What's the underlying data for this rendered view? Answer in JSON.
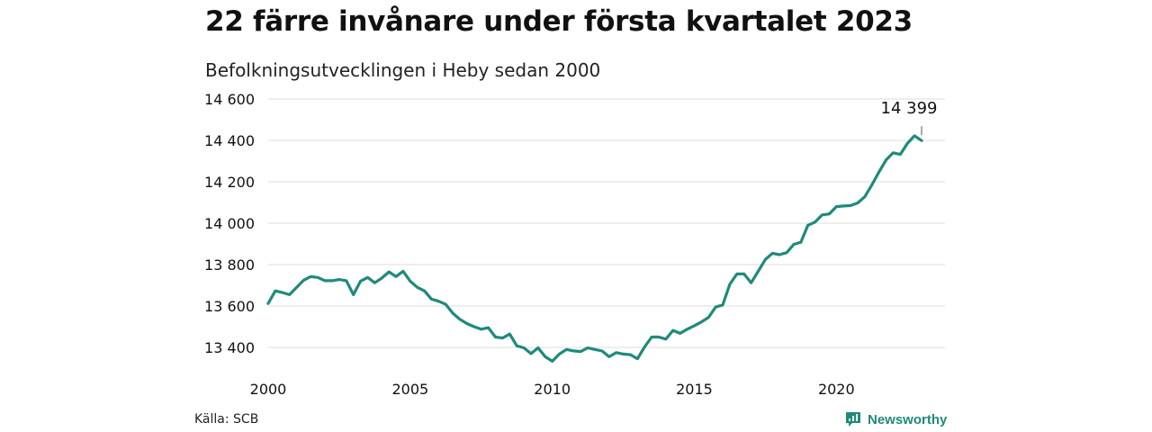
{
  "title": "22 färre invånare under första kvartalet 2023",
  "subtitle": "Befolkningsutvecklingen i Heby sedan 2000",
  "source": "Källa: SCB",
  "brand": "Newsworthy",
  "colors": {
    "line": "#1f8a7a",
    "grid": "#dddddd",
    "text": "#111111"
  },
  "chart_data": {
    "type": "line",
    "xlim": [
      2000,
      2023.25
    ],
    "ylim": [
      13300,
      14600
    ],
    "x_ticks": [
      2000,
      2005,
      2010,
      2015,
      2020
    ],
    "x_tick_labels": [
      "2000",
      "2005",
      "2010",
      "2015",
      "2020"
    ],
    "y_ticks": [
      13400,
      13600,
      13800,
      14000,
      14200,
      14400,
      14600
    ],
    "y_tick_labels": [
      "13 400",
      "13 600",
      "13 800",
      "14 000",
      "14 200",
      "14 400",
      "14 600"
    ],
    "grid": "horizontal",
    "annotation": {
      "x": 2023.0,
      "y": 14399,
      "label": "14 399"
    },
    "series": [
      {
        "x": [
          2000.0,
          2000.25,
          2000.5,
          2000.75,
          2001.0,
          2001.25,
          2001.5,
          2001.75,
          2002.0,
          2002.25,
          2002.5,
          2002.75,
          2003.0,
          2003.25,
          2003.5,
          2003.75,
          2004.0,
          2004.25,
          2004.5,
          2004.75,
          2005.0,
          2005.25,
          2005.5,
          2005.75,
          2006.0,
          2006.25,
          2006.5,
          2006.75,
          2007.0,
          2007.25,
          2007.5,
          2007.75,
          2008.0,
          2008.25,
          2008.5,
          2008.75,
          2009.0,
          2009.25,
          2009.5,
          2009.75,
          2010.0,
          2010.25,
          2010.5,
          2010.75,
          2011.0,
          2011.25,
          2011.5,
          2011.75,
          2012.0,
          2012.25,
          2012.5,
          2012.75,
          2013.0,
          2013.25,
          2013.5,
          2013.75,
          2014.0,
          2014.25,
          2014.5,
          2014.75,
          2015.0,
          2015.25,
          2015.5,
          2015.75,
          2016.0,
          2016.25,
          2016.5,
          2016.75,
          2017.0,
          2017.25,
          2017.5,
          2017.75,
          2018.0,
          2018.25,
          2018.5,
          2018.75,
          2019.0,
          2019.25,
          2019.5,
          2019.75,
          2020.0,
          2020.25,
          2020.5,
          2020.75,
          2021.0,
          2021.25,
          2021.5,
          2021.75,
          2022.0,
          2022.25,
          2022.5,
          2022.75,
          2023.0
        ],
        "values": [
          13612,
          13673,
          13665,
          13655,
          13690,
          13725,
          13742,
          13738,
          13722,
          13722,
          13728,
          13722,
          13655,
          13720,
          13738,
          13712,
          13735,
          13765,
          13742,
          13768,
          13720,
          13690,
          13673,
          13633,
          13623,
          13608,
          13565,
          13535,
          13515,
          13500,
          13488,
          13495,
          13450,
          13445,
          13465,
          13408,
          13398,
          13370,
          13398,
          13355,
          13333,
          13368,
          13390,
          13383,
          13380,
          13398,
          13390,
          13383,
          13355,
          13375,
          13368,
          13365,
          13345,
          13402,
          13450,
          13450,
          13440,
          13482,
          13468,
          13488,
          13505,
          13523,
          13545,
          13595,
          13605,
          13705,
          13755,
          13755,
          13712,
          13768,
          13825,
          13855,
          13848,
          13858,
          13898,
          13908,
          13990,
          14005,
          14040,
          14045,
          14080,
          14083,
          14085,
          14098,
          14128,
          14185,
          14248,
          14305,
          14340,
          14332,
          14385,
          14422,
          14399
        ]
      }
    ]
  }
}
